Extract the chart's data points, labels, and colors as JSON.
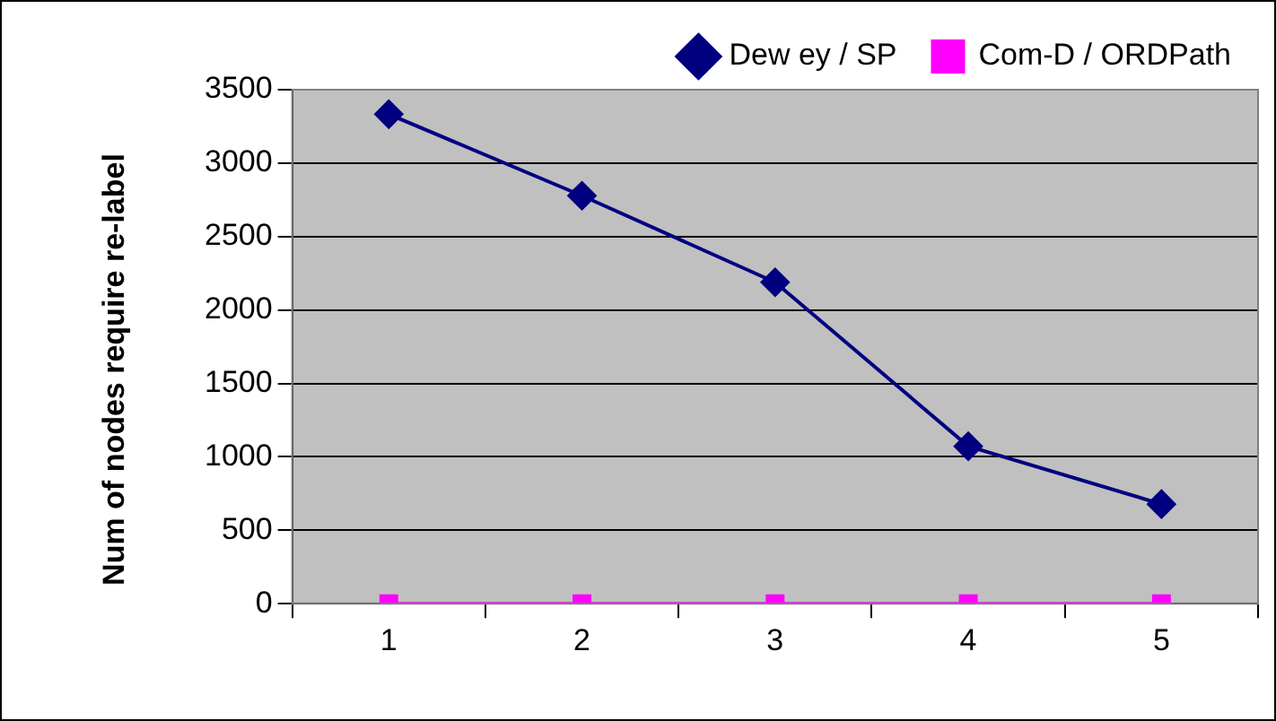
{
  "chart_data": {
    "type": "line",
    "ylabel": "Num of nodes require re-label",
    "categories": [
      "1",
      "2",
      "3",
      "4",
      "5"
    ],
    "series": [
      {
        "name": "Dew ey / SP",
        "color": "#000080",
        "marker": "diamond",
        "values": [
          3333,
          2778,
          2189,
          1072,
          678
        ]
      },
      {
        "name": "Com-D / ORDPath",
        "color": "#ff00ff",
        "marker": "square",
        "values": [
          0,
          0,
          0,
          0,
          0
        ]
      }
    ],
    "ylim": [
      0,
      3500
    ],
    "yticks": [
      0,
      500,
      1000,
      1500,
      2000,
      2500,
      3000,
      3500
    ],
    "grid": "y",
    "legend": "top",
    "line_style": "solid"
  }
}
